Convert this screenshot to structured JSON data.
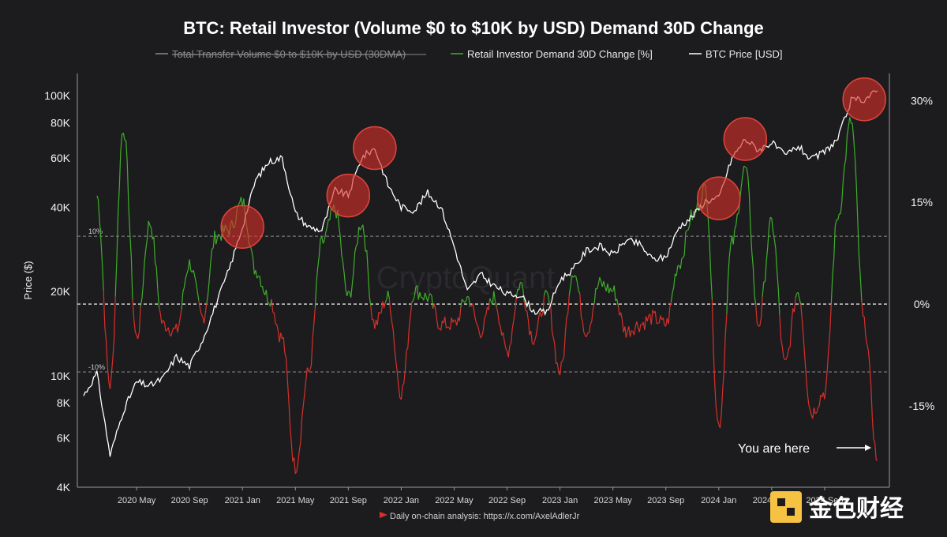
{
  "chart_data": {
    "type": "line",
    "title": "BTC: Retail Investor (Volume $0 to $10K by USD) Demand 30D Change",
    "legend": [
      {
        "label": "Total Transfer Volume $0 to $10K by USD (30DMA)",
        "color": "#8a8a8a",
        "hidden": true
      },
      {
        "label": "Retail Investor Demand 30D Change [%]",
        "color": "#3fae2a",
        "hidden": false
      },
      {
        "label": "BTC Price [USD]",
        "color": "#ffffff",
        "hidden": false
      }
    ],
    "legend_position": "top-center",
    "ylabel_left": "Price ($)",
    "y_left_scale": "log",
    "y_left_range": [
      4000,
      120000
    ],
    "y_left_ticks": [
      {
        "v": 4000,
        "label": "4K"
      },
      {
        "v": 6000,
        "label": "6K"
      },
      {
        "v": 8000,
        "label": "8K"
      },
      {
        "v": 10000,
        "label": "10K"
      },
      {
        "v": 20000,
        "label": "20K"
      },
      {
        "v": 40000,
        "label": "40K"
      },
      {
        "v": 60000,
        "label": "60K"
      },
      {
        "v": 80000,
        "label": "80K"
      },
      {
        "v": 100000,
        "label": "100K"
      }
    ],
    "y_right_range": [
      -27,
      34
    ],
    "y_right_ticks": [
      {
        "v": 30,
        "label": "30%"
      },
      {
        "v": 15,
        "label": "15%"
      },
      {
        "v": 0,
        "label": "0%"
      },
      {
        "v": -15,
        "label": "-15%"
      }
    ],
    "reference_lines": [
      {
        "v": 10,
        "label": "10%"
      },
      {
        "v": 0,
        "label": ""
      },
      {
        "v": -10,
        "label": "-10%"
      }
    ],
    "x_range": [
      "2020-01",
      "2025-01"
    ],
    "x_ticks": [
      {
        "x": "2020-05",
        "label": "2020 May"
      },
      {
        "x": "2020-09",
        "label": "2020 Sep"
      },
      {
        "x": "2021-01",
        "label": "2021 Jan"
      },
      {
        "x": "2021-05",
        "label": "2021 May"
      },
      {
        "x": "2021-09",
        "label": "2021 Sep"
      },
      {
        "x": "2022-01",
        "label": "2022 Jan"
      },
      {
        "x": "2022-05",
        "label": "2022 May"
      },
      {
        "x": "2022-09",
        "label": "2022 Sep"
      },
      {
        "x": "2023-01",
        "label": "2023 Jan"
      },
      {
        "x": "2023-05",
        "label": "2023 May"
      },
      {
        "x": "2023-09",
        "label": "2023 Sep"
      },
      {
        "x": "2024-01",
        "label": "2024 Jan"
      },
      {
        "x": "2024-05",
        "label": "2024 May"
      },
      {
        "x": "2024-09",
        "label": "2024 Sep"
      }
    ],
    "series": [
      {
        "name": "BTC Price [USD]",
        "axis": "left",
        "color": "#ffffff",
        "x": [
          "2020-01",
          "2020-02",
          "2020-03",
          "2020-04",
          "2020-05",
          "2020-06",
          "2020-07",
          "2020-08",
          "2020-09",
          "2020-10",
          "2020-11",
          "2020-12",
          "2021-01",
          "2021-02",
          "2021-03",
          "2021-04",
          "2021-05",
          "2021-06",
          "2021-07",
          "2021-08",
          "2021-09",
          "2021-10",
          "2021-11",
          "2021-12",
          "2022-01",
          "2022-02",
          "2022-03",
          "2022-04",
          "2022-05",
          "2022-06",
          "2022-07",
          "2022-08",
          "2022-09",
          "2022-10",
          "2022-11",
          "2022-12",
          "2023-01",
          "2023-02",
          "2023-03",
          "2023-04",
          "2023-05",
          "2023-06",
          "2023-07",
          "2023-08",
          "2023-09",
          "2023-10",
          "2023-11",
          "2023-12",
          "2024-01",
          "2024-02",
          "2024-03",
          "2024-04",
          "2024-05",
          "2024-06",
          "2024-07",
          "2024-08",
          "2024-09",
          "2024-10",
          "2024-11",
          "2024-12",
          "2025-01"
        ],
        "values": [
          8500,
          10200,
          5200,
          7500,
          9500,
          9200,
          9800,
          11700,
          10800,
          13500,
          18000,
          24000,
          34000,
          50000,
          58000,
          60000,
          38000,
          34000,
          33000,
          46000,
          44000,
          60000,
          65000,
          48000,
          40000,
          39000,
          45000,
          40000,
          29000,
          20000,
          23000,
          21000,
          19500,
          19500,
          17000,
          16800,
          22000,
          24000,
          28000,
          29000,
          27000,
          30500,
          29500,
          26000,
          26500,
          34000,
          37000,
          42000,
          43000,
          60000,
          70000,
          64000,
          68000,
          61000,
          66000,
          59000,
          63000,
          70000,
          96000,
          97000,
          104000
        ]
      },
      {
        "name": "Retail Investor Demand 30D Change [%]",
        "axis": "right",
        "color_positive": "#3fae2a",
        "color_negative": "#d6302a",
        "x": [
          "2020-02",
          "2020-03",
          "2020-04",
          "2020-05",
          "2020-06",
          "2020-07",
          "2020-08",
          "2020-09",
          "2020-10",
          "2020-11",
          "2020-12",
          "2021-01",
          "2021-02",
          "2021-03",
          "2021-04",
          "2021-05",
          "2021-06",
          "2021-07",
          "2021-08",
          "2021-09",
          "2021-10",
          "2021-11",
          "2021-12",
          "2022-01",
          "2022-02",
          "2022-03",
          "2022-04",
          "2022-05",
          "2022-06",
          "2022-07",
          "2022-08",
          "2022-09",
          "2022-10",
          "2022-11",
          "2022-12",
          "2023-01",
          "2023-02",
          "2023-03",
          "2023-04",
          "2023-05",
          "2023-06",
          "2023-07",
          "2023-08",
          "2023-09",
          "2023-10",
          "2023-11",
          "2023-12",
          "2024-01",
          "2024-02",
          "2024-03",
          "2024-04",
          "2024-05",
          "2024-06",
          "2024-07",
          "2024-08",
          "2024-09",
          "2024-10",
          "2024-11",
          "2024-12",
          "2025-01"
        ],
        "values": [
          16,
          -12,
          26,
          -5,
          12,
          -3,
          -4,
          6,
          -2,
          10,
          11,
          15,
          5,
          1,
          -5,
          -24,
          -10,
          9,
          14,
          1,
          12,
          -3,
          1,
          -13,
          2,
          1,
          -3,
          -3,
          1,
          -4,
          1,
          -7,
          3,
          -5,
          1,
          -10,
          5,
          -4,
          3,
          2,
          -4,
          -3,
          -2,
          -3,
          6,
          13,
          17,
          -18,
          9,
          20,
          -3,
          12,
          -9,
          2,
          -16,
          -13,
          13,
          27,
          -3,
          -23
        ]
      }
    ],
    "highlights": [
      "2021-01",
      "2021-09",
      "2021-11",
      "2024-01",
      "2024-03",
      "2024-12"
    ],
    "annotations": [
      {
        "text": "You are here",
        "x": "2025-01"
      }
    ],
    "watermark": "CryptoQuant",
    "footer": "Daily on-chain analysis: https://x.com/AxelAdlerJr",
    "brand": "金色财经"
  }
}
